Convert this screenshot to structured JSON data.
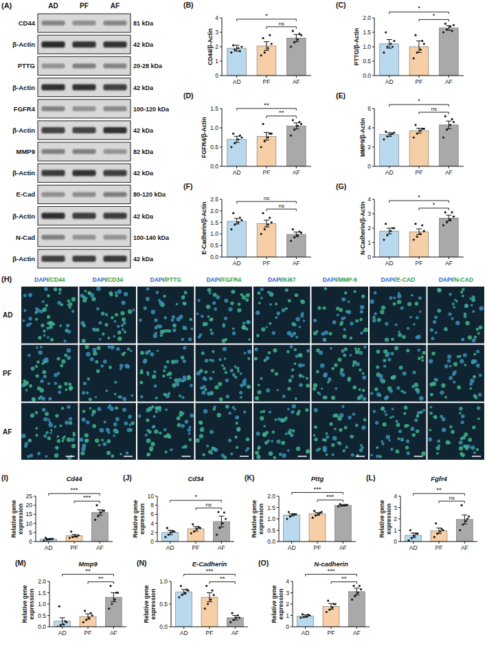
{
  "blot": {
    "panel": "(A)",
    "lanes": [
      "AD",
      "PF",
      "AF"
    ],
    "rows": [
      {
        "protein": "CD44",
        "size": "81 kDa"
      },
      {
        "protein": "β-Actin",
        "size": "42 kDa"
      },
      {
        "protein": "PTTG",
        "size": "20-28 kDa"
      },
      {
        "protein": "β-Actin",
        "size": "42 kDa"
      },
      {
        "protein": "FGFR4",
        "size": "100-120 kDa"
      },
      {
        "protein": "β-Actin",
        "size": "42 kDa"
      },
      {
        "protein": "MMP9",
        "size": "82 kDa"
      },
      {
        "protein": "β-Actin",
        "size": "42 kDa"
      },
      {
        "protein": "E-Cad",
        "size": "80-120 kDa"
      },
      {
        "protein": "β-Actin",
        "size": "42 kDa"
      },
      {
        "protein": "N-Cad",
        "size": "100-140 kDa"
      },
      {
        "protein": "β-Actin",
        "size": "42 kDa"
      }
    ]
  },
  "image_grid": {
    "panel": "(H)",
    "columns": [
      "DAPI/CD44",
      "DAPI/CD34",
      "DAPI/PTTG",
      "DAPI/FGFR4",
      "DAPI/Ki67",
      "DAPI/MMP-9",
      "DAPI/E-CAD",
      "DAPI/N-CAD"
    ],
    "rows": [
      "AD",
      "PF",
      "AF"
    ]
  },
  "chart_data": [
    {
      "type": "bar",
      "panel": "(B)",
      "y_label": "CD44/β-Actin",
      "categories": [
        "AD",
        "PF",
        "AF"
      ],
      "values": [
        1.9,
        2.05,
        2.6
      ],
      "errors": [
        0.2,
        0.3,
        0.25
      ],
      "points": [
        [
          1.6,
          1.8,
          1.9,
          2.0,
          2.1,
          1.7
        ],
        [
          1.4,
          1.6,
          1.9,
          2.2,
          2.6,
          2.8
        ],
        [
          2.0,
          2.3,
          2.5,
          2.8,
          3.1,
          2.9
        ]
      ],
      "colors": [
        "#b9d9ef",
        "#f6cfa6",
        "#a9a9a9"
      ],
      "ylim": [
        0,
        4
      ],
      "yticks": [
        0,
        1,
        2,
        3,
        4
      ],
      "comparisons": [
        {
          "groups": [
            "AD",
            "AF"
          ],
          "label": "*"
        },
        {
          "groups": [
            "PF",
            "AF"
          ],
          "label": "ns"
        }
      ]
    },
    {
      "type": "bar",
      "panel": "(C)",
      "y_label": "PTTG/β-Actin",
      "categories": [
        "AD",
        "PF",
        "AF"
      ],
      "values": [
        1.1,
        1.0,
        1.65
      ],
      "errors": [
        0.15,
        0.2,
        0.08
      ],
      "points": [
        [
          0.8,
          1.0,
          1.1,
          1.2,
          1.5,
          1.0
        ],
        [
          0.6,
          0.8,
          0.9,
          1.1,
          1.4,
          1.2
        ],
        [
          1.5,
          1.6,
          1.7,
          1.75,
          1.8,
          1.55
        ]
      ],
      "colors": [
        "#b9d9ef",
        "#f6cfa6",
        "#a9a9a9"
      ],
      "ylim": [
        0,
        2
      ],
      "yticks": [
        {
          "value": 0,
          "label": "0.0"
        },
        0.5,
        {
          "value": 1,
          "label": "1.0"
        },
        1.5,
        {
          "value": 2,
          "label": "2.0"
        }
      ],
      "comparisons": [
        {
          "groups": [
            "AD",
            "AF"
          ],
          "label": "*"
        },
        {
          "groups": [
            "PF",
            "AF"
          ],
          "label": "*"
        }
      ]
    },
    {
      "type": "bar",
      "panel": "(D)",
      "y_label": "FGFR4/β-Actin",
      "categories": [
        "AD",
        "PF",
        "AF"
      ],
      "values": [
        0.7,
        0.78,
        1.05
      ],
      "errors": [
        0.08,
        0.1,
        0.08
      ],
      "points": [
        [
          0.5,
          0.6,
          0.7,
          0.75,
          0.85,
          0.8
        ],
        [
          0.5,
          0.65,
          0.75,
          0.85,
          1.1,
          0.85
        ],
        [
          0.8,
          0.95,
          1.05,
          1.1,
          1.2,
          1.15
        ]
      ],
      "colors": [
        "#b9d9ef",
        "#f6cfa6",
        "#a9a9a9"
      ],
      "ylim": [
        0,
        1.5
      ],
      "yticks": [
        {
          "value": 0,
          "label": "0.0"
        },
        0.5,
        {
          "value": 1,
          "label": "1.0"
        },
        1.5
      ],
      "comparisons": [
        {
          "groups": [
            "AD",
            "AF"
          ],
          "label": "**"
        },
        {
          "groups": [
            "PF",
            "AF"
          ],
          "label": "**"
        }
      ]
    },
    {
      "type": "bar",
      "panel": "(E)",
      "y_label": "MMP9/β-Actin",
      "categories": [
        "AD",
        "PF",
        "AF"
      ],
      "values": [
        3.3,
        3.7,
        4.3
      ],
      "errors": [
        0.2,
        0.25,
        0.4
      ],
      "points": [
        [
          2.8,
          3.1,
          3.3,
          3.5,
          3.6,
          3.4
        ],
        [
          3.0,
          3.4,
          3.7,
          3.9,
          4.3,
          3.9
        ],
        [
          3.0,
          3.8,
          4.3,
          4.6,
          5.2,
          4.9
        ]
      ],
      "colors": [
        "#b9d9ef",
        "#f6cfa6",
        "#a9a9a9"
      ],
      "ylim": [
        0,
        6
      ],
      "yticks": [
        0,
        2,
        4,
        6
      ],
      "comparisons": [
        {
          "groups": [
            "AD",
            "AF"
          ],
          "label": "*"
        },
        {
          "groups": [
            "PF",
            "AF"
          ],
          "label": "ns"
        }
      ]
    },
    {
      "type": "bar",
      "panel": "(F)",
      "y_label": "E-Cadherin/β-Actin",
      "categories": [
        "AD",
        "PF",
        "AF"
      ],
      "values": [
        1.55,
        1.45,
        0.98
      ],
      "errors": [
        0.12,
        0.15,
        0.1
      ],
      "points": [
        [
          1.2,
          1.4,
          1.5,
          1.6,
          1.9,
          1.7
        ],
        [
          1.0,
          1.2,
          1.4,
          1.5,
          1.9,
          1.7
        ],
        [
          0.7,
          0.85,
          0.95,
          1.05,
          1.2,
          1.1
        ]
      ],
      "colors": [
        "#b9d9ef",
        "#f6cfa6",
        "#a9a9a9"
      ],
      "ylim": [
        0,
        2.5
      ],
      "yticks": [
        {
          "value": 0,
          "label": "0.0"
        },
        0.5,
        {
          "value": 1,
          "label": "1.0"
        },
        1.5,
        {
          "value": 2,
          "label": "2.0"
        },
        2.5
      ],
      "comparisons": [
        {
          "groups": [
            "AD",
            "AF"
          ],
          "label": "ns"
        },
        {
          "groups": [
            "PF",
            "AF"
          ],
          "label": "ns"
        }
      ]
    },
    {
      "type": "bar",
      "panel": "(G)",
      "y_label": "N-Cadherin/β-Actin",
      "categories": [
        "AD",
        "PF",
        "AF"
      ],
      "values": [
        1.8,
        1.75,
        2.7
      ],
      "errors": [
        0.2,
        0.2,
        0.2
      ],
      "points": [
        [
          1.2,
          1.5,
          1.8,
          2.0,
          2.3,
          2.0
        ],
        [
          1.2,
          1.4,
          1.6,
          1.8,
          2.3,
          2.2
        ],
        [
          2.2,
          2.4,
          2.6,
          2.8,
          3.1,
          3.1
        ]
      ],
      "colors": [
        "#b9d9ef",
        "#f6cfa6",
        "#a9a9a9"
      ],
      "ylim": [
        0,
        4
      ],
      "yticks": [
        0,
        1,
        2,
        3,
        4
      ],
      "comparisons": [
        {
          "groups": [
            "AD",
            "AF"
          ],
          "label": "*"
        },
        {
          "groups": [
            "PF",
            "AF"
          ],
          "label": "*"
        }
      ]
    },
    {
      "type": "bar",
      "panel": "(I)",
      "title": "Cd44",
      "y_label": "Relative gene expression",
      "categories": [
        "AD",
        "PF",
        "AF"
      ],
      "values": [
        1.3,
        3.2,
        16
      ],
      "errors": [
        0.4,
        0.7,
        1.5
      ],
      "points": [
        [
          0.5,
          1.0,
          1.3,
          1.5,
          2.0,
          1.5
        ],
        [
          2.0,
          2.5,
          3.0,
          3.5,
          5.5,
          2.7
        ],
        [
          12,
          14,
          16,
          17,
          20,
          17
        ]
      ],
      "colors": [
        "#b9d9ef",
        "#f6cfa6",
        "#a9a9a9"
      ],
      "ylim": [
        0,
        25
      ],
      "yticks": [
        0,
        5,
        10,
        15,
        20,
        25
      ],
      "comparisons": [
        {
          "groups": [
            "AD",
            "AF"
          ],
          "label": "***"
        },
        {
          "groups": [
            "PF",
            "AF"
          ],
          "label": "***"
        }
      ]
    },
    {
      "type": "bar",
      "panel": "(J)",
      "title": "Cd34",
      "y_label": "Relative gene expression",
      "categories": [
        "AD",
        "PF",
        "AF"
      ],
      "values": [
        2.0,
        2.8,
        4.4
      ],
      "errors": [
        0.5,
        0.5,
        1.2
      ],
      "points": [
        [
          1.0,
          1.5,
          2.0,
          2.2,
          3.0,
          2.3
        ],
        [
          1.8,
          2.2,
          2.8,
          3.0,
          3.8,
          3.2
        ],
        [
          1.5,
          3.0,
          4.0,
          5.0,
          6.5,
          6.4
        ]
      ],
      "colors": [
        "#b9d9ef",
        "#f6cfa6",
        "#a9a9a9"
      ],
      "ylim": [
        0,
        10
      ],
      "yticks": [
        0,
        2,
        4,
        6,
        8,
        10
      ],
      "comparisons": [
        {
          "groups": [
            "AD",
            "AF"
          ],
          "label": "*"
        },
        {
          "groups": [
            "PF",
            "AF"
          ],
          "label": "ns"
        }
      ]
    },
    {
      "type": "bar",
      "panel": "(K)",
      "title": "Pttg",
      "y_label": "Relative gene expression",
      "categories": [
        "AD",
        "PF",
        "AF"
      ],
      "values": [
        1.17,
        1.22,
        1.6
      ],
      "errors": [
        0.05,
        0.06,
        0.03
      ],
      "points": [
        [
          1.0,
          1.1,
          1.2,
          1.2,
          1.3,
          1.2
        ],
        [
          1.05,
          1.15,
          1.2,
          1.3,
          1.35,
          1.27
        ],
        [
          1.55,
          1.58,
          1.6,
          1.62,
          1.65,
          1.6
        ]
      ],
      "colors": [
        "#b9d9ef",
        "#f6cfa6",
        "#a9a9a9"
      ],
      "ylim": [
        0,
        2
      ],
      "yticks": [
        {
          "value": 0,
          "label": "0.0"
        },
        0.5,
        {
          "value": 1,
          "label": "1.0"
        },
        1.5,
        {
          "value": 2,
          "label": "2.0"
        }
      ],
      "comparisons": [
        {
          "groups": [
            "AD",
            "AF"
          ],
          "label": "***"
        },
        {
          "groups": [
            "PF",
            "AF"
          ],
          "label": "***"
        }
      ]
    },
    {
      "type": "bar",
      "panel": "(L)",
      "title": "Fgfr4",
      "y_label": "Relative gene expression",
      "categories": [
        "AD",
        "PF",
        "AF"
      ],
      "values": [
        0.55,
        0.95,
        1.95
      ],
      "errors": [
        0.2,
        0.25,
        0.4
      ],
      "points": [
        [
          0.1,
          0.3,
          0.5,
          0.7,
          1.0,
          0.7
        ],
        [
          0.4,
          0.7,
          0.9,
          1.0,
          1.6,
          1.1
        ],
        [
          1.0,
          1.5,
          1.8,
          2.2,
          3.2,
          2.0
        ]
      ],
      "colors": [
        "#b9d9ef",
        "#f6cfa6",
        "#a9a9a9"
      ],
      "ylim": [
        0,
        4
      ],
      "yticks": [
        0,
        1,
        2,
        3,
        4
      ],
      "comparisons": [
        {
          "groups": [
            "AD",
            "AF"
          ],
          "label": "**"
        },
        {
          "groups": [
            "PF",
            "AF"
          ],
          "label": "ns"
        }
      ]
    },
    {
      "type": "bar",
      "panel": "(M)",
      "title": "Mmp9",
      "y_label": "Relative gene expression",
      "categories": [
        "AD",
        "PF",
        "AF"
      ],
      "values": [
        0.25,
        0.45,
        1.3
      ],
      "errors": [
        0.15,
        0.12,
        0.2
      ],
      "points": [
        [
          0.0,
          0.05,
          0.1,
          0.2,
          0.9,
          0.25
        ],
        [
          0.2,
          0.3,
          0.4,
          0.5,
          0.7,
          0.6
        ],
        [
          0.8,
          1.0,
          1.2,
          1.5,
          1.8,
          1.5
        ]
      ],
      "colors": [
        "#b9d9ef",
        "#f6cfa6",
        "#a9a9a9"
      ],
      "ylim": [
        0,
        2
      ],
      "yticks": [
        {
          "value": 0,
          "label": "0.0"
        },
        0.5,
        {
          "value": 1,
          "label": "1.0"
        },
        1.5,
        {
          "value": 2,
          "label": "2.0"
        }
      ],
      "comparisons": [
        {
          "groups": [
            "AD",
            "AF"
          ],
          "label": "**"
        },
        {
          "groups": [
            "PF",
            "AF"
          ],
          "label": "**"
        }
      ]
    },
    {
      "type": "bar",
      "panel": "(N)",
      "title": "E-Cadherin",
      "y_label": "Relative gene expression",
      "categories": [
        "AD",
        "PF",
        "AF"
      ],
      "values": [
        0.77,
        0.65,
        0.2
      ],
      "errors": [
        0.05,
        0.1,
        0.05
      ],
      "points": [
        [
          0.65,
          0.7,
          0.75,
          0.8,
          0.9,
          0.82
        ],
        [
          0.4,
          0.5,
          0.6,
          0.7,
          0.9,
          0.8
        ],
        [
          0.1,
          0.15,
          0.2,
          0.2,
          0.3,
          0.25
        ]
      ],
      "colors": [
        "#b9d9ef",
        "#f6cfa6",
        "#a9a9a9"
      ],
      "ylim": [
        0,
        1
      ],
      "yticks": [
        {
          "value": 0,
          "label": "0.0"
        },
        0.5,
        {
          "value": 1,
          "label": "1.0"
        }
      ],
      "comparisons": [
        {
          "groups": [
            "AD",
            "AF"
          ],
          "label": "***"
        },
        {
          "groups": [
            "PF",
            "AF"
          ],
          "label": "**"
        }
      ]
    },
    {
      "type": "bar",
      "panel": "(O)",
      "title": "N-cadherin",
      "y_label": "Relative gene expression",
      "categories": [
        "AD",
        "PF",
        "AF"
      ],
      "values": [
        0.95,
        1.8,
        3.1
      ],
      "errors": [
        0.1,
        0.25,
        0.3
      ],
      "points": [
        [
          0.8,
          0.85,
          0.9,
          1.0,
          1.1,
          1.05
        ],
        [
          1.3,
          1.5,
          1.7,
          2.0,
          2.3,
          2.0
        ],
        [
          2.4,
          2.7,
          3.0,
          3.3,
          3.6,
          3.6
        ]
      ],
      "colors": [
        "#b9d9ef",
        "#f6cfa6",
        "#a9a9a9"
      ],
      "ylim": [
        0,
        4
      ],
      "yticks": [
        0,
        1,
        2,
        3,
        4
      ],
      "comparisons": [
        {
          "groups": [
            "AD",
            "AF"
          ],
          "label": "***"
        },
        {
          "groups": [
            "PF",
            "AF"
          ],
          "label": "**"
        }
      ]
    }
  ]
}
